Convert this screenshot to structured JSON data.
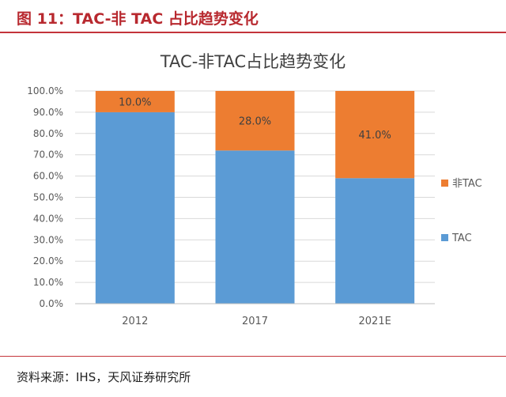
{
  "figure": {
    "caption": "图 11：TAC-非  TAC 占比趋势变化",
    "source": "资料来源：IHS，天风证券研究所"
  },
  "colors": {
    "accent": "#c4343a",
    "tac": "#5b9bd5",
    "non_tac": "#ed7d31",
    "grid": "#d9d9d9",
    "axis_text": "#595959"
  },
  "chart_data": {
    "type": "bar",
    "stacked": true,
    "title": "TAC-非TAC占比趋势变化",
    "categories": [
      "2012",
      "2017",
      "2021E"
    ],
    "series": [
      {
        "name": "TAC",
        "values": [
          90.0,
          72.0,
          59.0
        ],
        "color": "#5b9bd5"
      },
      {
        "name": "非TAC",
        "values": [
          10.0,
          28.0,
          41.0
        ],
        "color": "#ed7d31",
        "data_labels": [
          "10.0%",
          "28.0%",
          "41.0%"
        ]
      }
    ],
    "ylim": [
      0,
      100
    ],
    "yticks": [
      "0.0%",
      "10.0%",
      "20.0%",
      "30.0%",
      "40.0%",
      "50.0%",
      "60.0%",
      "70.0%",
      "80.0%",
      "90.0%",
      "100.0%"
    ],
    "grid": true,
    "legend": {
      "position": "right",
      "entries": [
        "非TAC",
        "TAC"
      ]
    }
  }
}
